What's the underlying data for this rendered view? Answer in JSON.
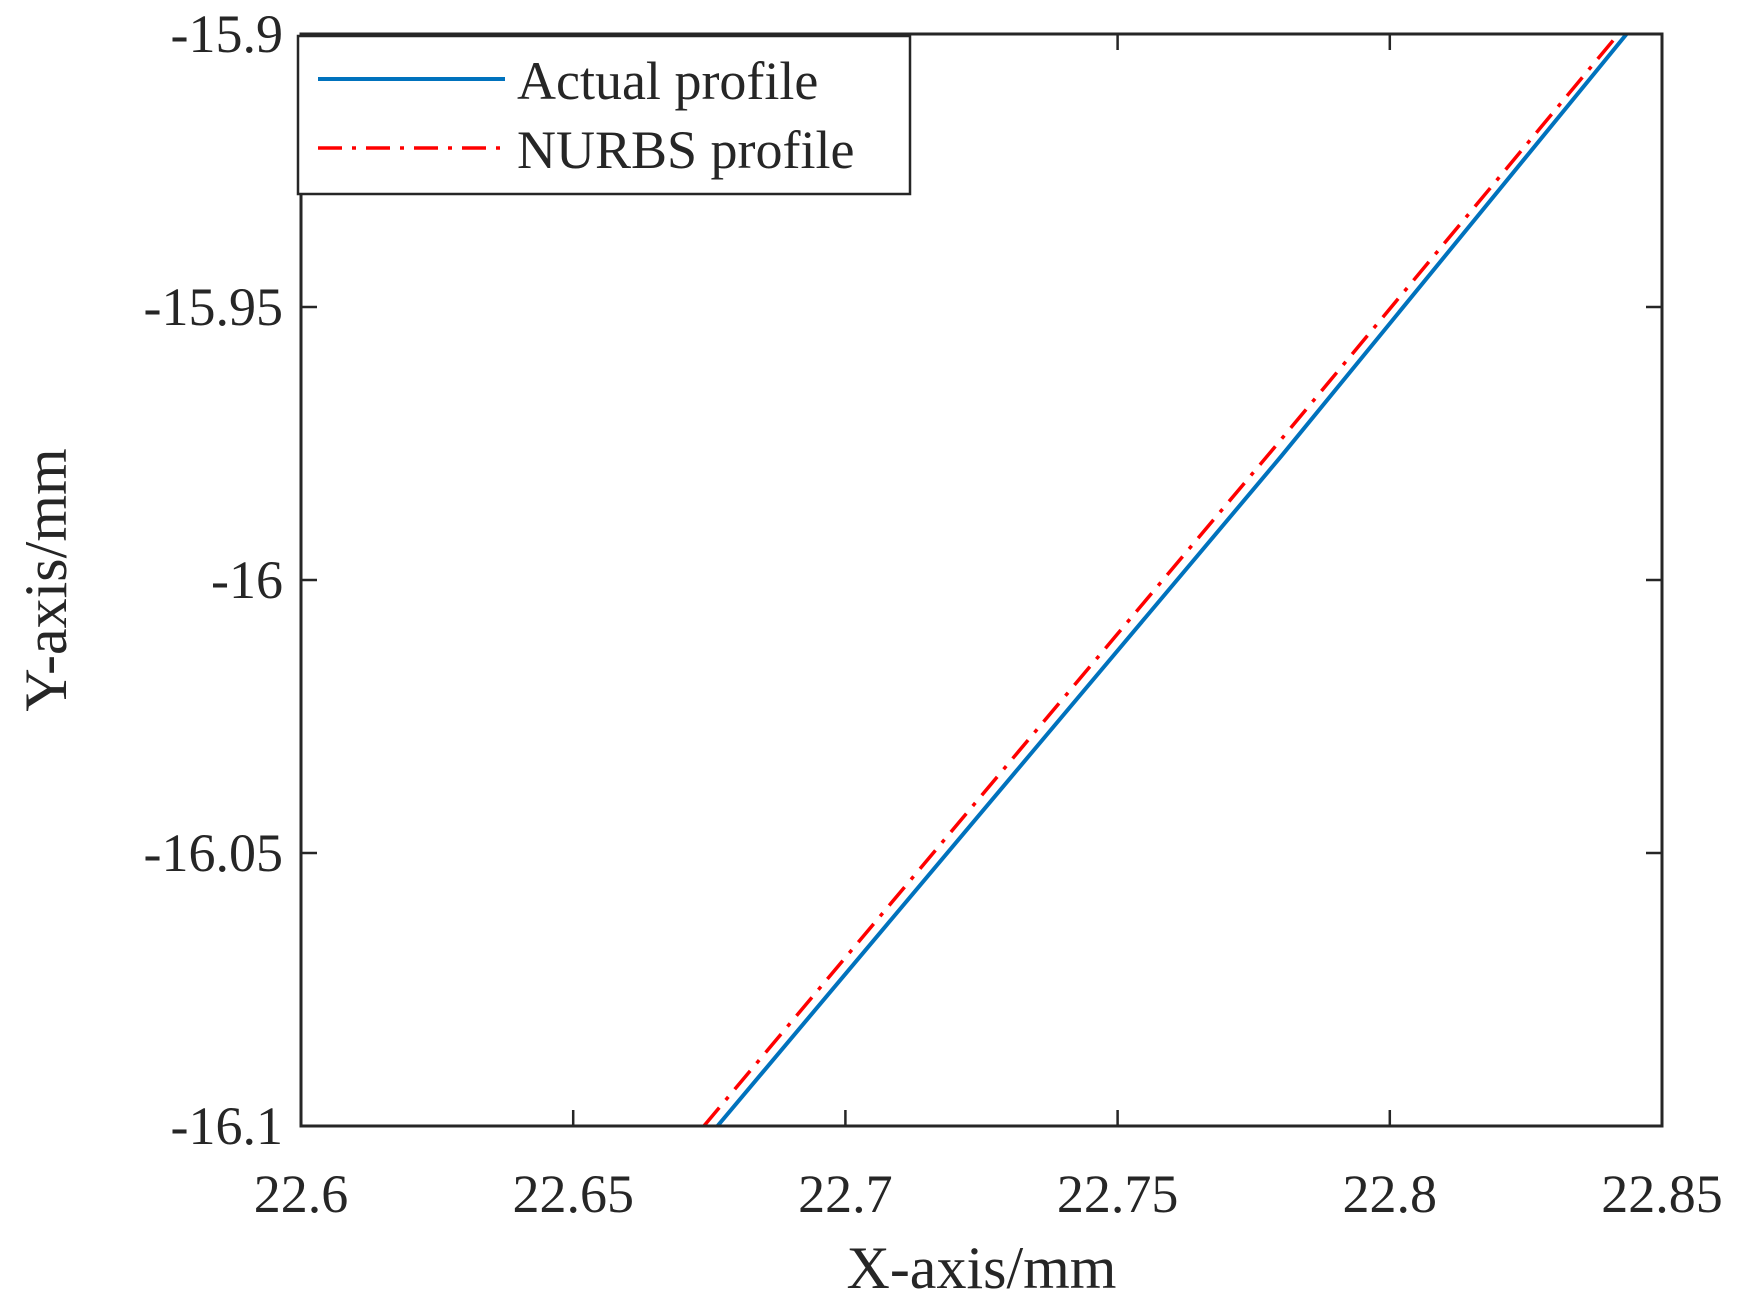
{
  "chart_data": {
    "type": "line",
    "xlabel": "X-axis/mm",
    "ylabel": "Y-axis/mm",
    "xlim": [
      22.6,
      22.85
    ],
    "ylim": [
      -16.1,
      -15.9
    ],
    "xticks": [
      22.6,
      22.65,
      22.7,
      22.75,
      22.8,
      22.85
    ],
    "xtick_labels": [
      "22.6",
      "22.65",
      "22.7",
      "22.75",
      "22.8",
      "22.85"
    ],
    "yticks": [
      -15.9,
      -15.95,
      -16.0,
      -16.05,
      -16.1
    ],
    "ytick_labels": [
      "-15.9",
      "-15.95",
      "-16",
      "-16.05",
      "-16.1"
    ],
    "grid": false,
    "legend_position": "top-left",
    "series": [
      {
        "name": "Actual profile",
        "color": "#0072BD",
        "style": "solid",
        "x": [
          22.6765,
          22.735,
          22.78,
          22.8435
        ],
        "y": [
          -16.1,
          -16.0307,
          -15.9774,
          -15.9
        ]
      },
      {
        "name": "NURBS profile",
        "color": "#FF0000",
        "style": "dashdot",
        "x": [
          22.674,
          22.734,
          22.779,
          22.842
        ],
        "y": [
          -16.1,
          -16.0288,
          -15.9755,
          -15.9
        ]
      }
    ]
  }
}
